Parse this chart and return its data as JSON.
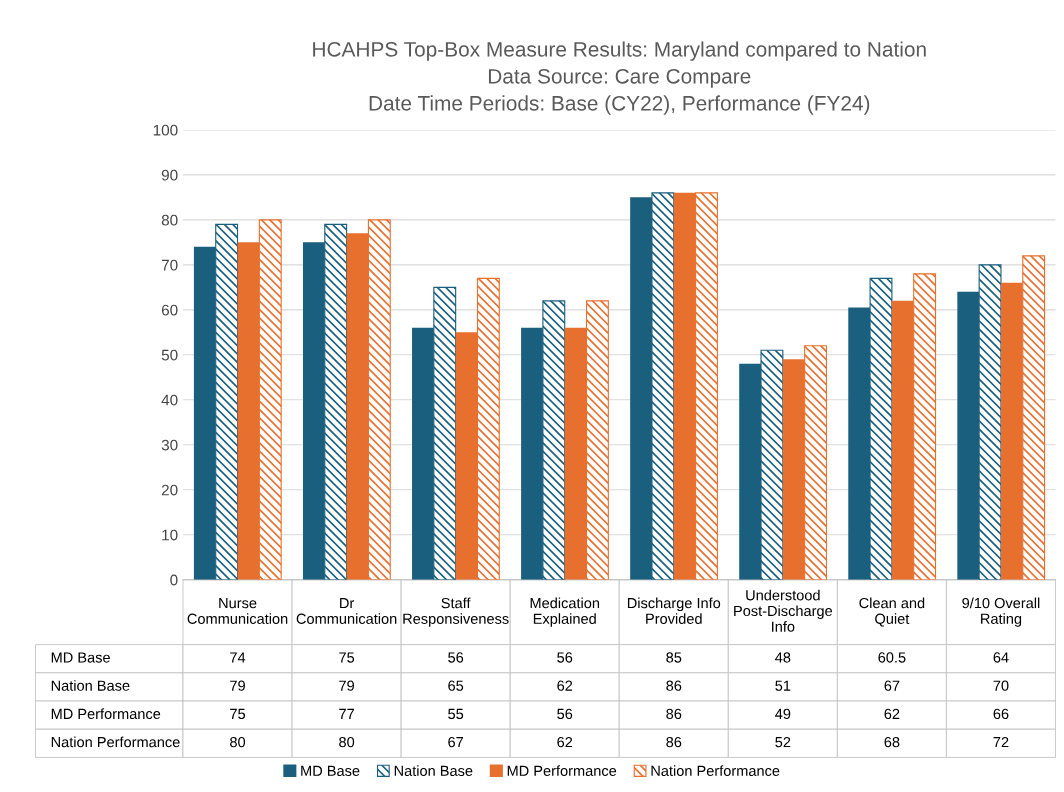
{
  "chart_data": {
    "type": "bar",
    "title": "HCAHPS Top-Box Measure Results: Maryland compared to Nation\nData Source: Care Compare\nDate Time Periods: Base (CY22), Performance (FY24)",
    "categories": [
      "Nurse Communication",
      "Dr Communication",
      "Staff Responsiveness",
      "Medication Explained",
      "Discharge Info Provided",
      "Understood Post-Discharge Info",
      "Clean and Quiet",
      "9/10 Overall Rating"
    ],
    "series": [
      {
        "name": "MD Base",
        "color": "#1b5f7e",
        "values": [
          74,
          75,
          56,
          56,
          85,
          48,
          60.5,
          64
        ]
      },
      {
        "name": "Nation Base",
        "color": "#1b5f7e",
        "values": [
          79,
          79,
          65,
          62,
          86,
          51,
          67,
          70
        ]
      },
      {
        "name": "MD Performance",
        "color": "#e8702f",
        "values": [
          75,
          77,
          55,
          56,
          86,
          49,
          62,
          66
        ]
      },
      {
        "name": "Nation Performance",
        "color": "#e8702f",
        "values": [
          80,
          80,
          67,
          62,
          86,
          52,
          68,
          72
        ]
      }
    ],
    "ylim": [
      0,
      100
    ],
    "yticks": [
      0,
      10,
      20,
      30,
      40,
      50,
      60,
      70,
      80,
      90,
      100
    ],
    "grid": "y",
    "legend": "bottom",
    "data_labels": true
  }
}
